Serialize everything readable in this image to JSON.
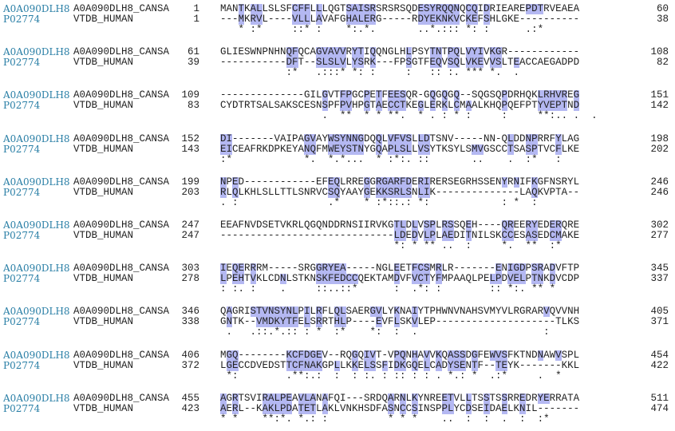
{
  "blocks": [
    {
      "rows": [
        {
          "id": "A0A090DLH8",
          "name": "A0A090DLH8_CANSA",
          "start": 1,
          "seq": "MANTKALLSLSFCFFLLLQGTSAISRSRSRSQDESYRQQNQCQIDRIEAREPDTRVEAEA",
          "end": 60
        },
        {
          "id": "P02774",
          "name": "VTDB_HUMAN",
          "start": 1,
          "seq": "---MKRVL----VLLLAVAFGHALERG-----RDYEKNKVCKEFSHLGKE----------",
          "end": 38
        }
      ],
      "consensus": "   * :*     ::* :    *:.*.       ..*.::: *: :      .:*"
    },
    {
      "rows": [
        {
          "id": "A0A090DLH8",
          "name": "A0A090DLH8_CANSA",
          "start": 61,
          "seq": "GLIESWNPNHNQFQCAGVAVVRYTIQQNGLHLPSYTNTPQLVYIVKGR------------",
          "end": 108
        },
        {
          "id": "P02774",
          "name": "VTDB_HUMAN",
          "start": 39,
          "seq": "-----------DFT--SLSLVLYSRK---FPSGTFEQVSQLVKEVVSLTEACCAEGADPD",
          "end": 82
        }
      ],
      "consensus": "           :*   .:::* *: :     :   :: :. *** *.  ."
    },
    {
      "rows": [
        {
          "id": "A0A090DLH8",
          "name": "A0A090DLH8_CANSA",
          "start": 109,
          "seq": "--------------GILGVTFPGCPETFEESQR-GQGQGQ--SQGSQPDRHQKLRHVREG",
          "end": 151
        },
        {
          "id": "P02774",
          "name": "VTDB_HUMAN",
          "start": 83,
          "seq": "CYDTRTSALSAKSCESNSPFPVHPGTAECCTKEGLERKLCMAALKHQPQEFPTYVEPTND",
          "end": 142
        }
      ],
      "consensus": "                 .  **  * * **.  * . : * :     :     **:.. .  ."
    },
    {
      "rows": [
        {
          "id": "A0A090DLH8",
          "name": "A0A090DLH8_CANSA",
          "start": 152,
          "seq": "DI-------VAIPAGVAYWSYNNGDQQLVFVSLLDTSNV-----NN-QLDDNPRRFYLAG",
          "end": 198
        },
        {
          "id": "P02774",
          "name": "VTDB_HUMAN",
          "start": 143,
          "seq": "EICEAFRKDPKEYANQFMWEYSTNYGQAPLSLLVSYTKSYLSMVGSCCTSASPTVCFLKE",
          "end": 202
        }
      ],
      "consensus": ":*            *.  *.*...  * :*:. ::       ..    .  :*   :"
    },
    {
      "rows": [
        {
          "id": "A0A090DLH8",
          "name": "A0A090DLH8_CANSA",
          "start": 199,
          "seq": "NPED------------EFEQLRREGGRGARFDERIRERSEGRHSSENYRNIFKGFNSRYL",
          "end": 246
        },
        {
          "id": "P02774",
          "name": "VTDB_HUMAN",
          "start": 203,
          "seq": "RLQLKHLSLLTTLSNRVCSQYAAYGEKKSRLSNLIK--------------LAQKVPTA--",
          "end": 246
        }
      ],
      "consensus": ". :               .*    * :*::.: *:            : *  :"
    },
    {
      "rows": [
        {
          "id": "A0A090DLH8",
          "name": "A0A090DLH8_CANSA",
          "start": 247,
          "seq": "EEAFNVDSETVKRLQGQNDDRNSIIRVKGTLDLVSPLRSSQEH----QREERYEDERQRE",
          "end": 302
        },
        {
          "id": "P02774",
          "name": "VTDB_HUMAN",
          "start": 247,
          "seq": "-----------------------------LDEDVLPLAEDITNILSKCCESASEDCMAKE",
          "end": 277
        }
      ],
      "consensus": "                             *: * ** ..  :     *.  **  :*"
    },
    {
      "rows": [
        {
          "id": "A0A090DLH8",
          "name": "A0A090DLH8_CANSA",
          "start": 303,
          "seq": "IEQERRRM-----SRGGRYEA-----NGLEETFCSMRLR-------ENIGDPSRADVFTP",
          "end": 345
        },
        {
          "id": "P02774",
          "name": "VTDB_HUMAN",
          "start": 278,
          "seq": "LPEHTVKLCDNLSTKNSKFEDCCQEKTAMDVFVCTYFMPAAQLPELPDVELPTNKDVCDP",
          "end": 337
        }
      ],
      "consensus": ": :. :    .     ::..::*      :  .*: :        :: *:. ** *"
    },
    {
      "rows": [
        {
          "id": "A0A090DLH8",
          "name": "A0A090DLH8_CANSA",
          "start": 346,
          "seq": "QAGRISTVNSYNLPILRFLQLSAERGVLYKNAIYTPHWNVNAHSVMYVLRGRARVQVVNH",
          "end": 405
        },
        {
          "id": "P02774",
          "name": "VTDB_HUMAN",
          "start": 338,
          "seq": "GNTK--VMDKYTFELSRRTHLP----EVFLSKVLEP--------------------TLKS",
          "end": 371
        }
      ],
      "consensus": " .   .::.*.:: : *  :*    *:  :  .                     :"
    },
    {
      "rows": [
        {
          "id": "A0A090DLH8",
          "name": "A0A090DLH8_CANSA",
          "start": 406,
          "seq": "MGQ--------KCFDGEV--RQGQIVT-VPQNHAVVKQASSDGFEWVSFKTNDNAWVSPL",
          "end": 454
        },
        {
          "id": "P02774",
          "name": "VTDB_HUMAN",
          "start": 372,
          "seq": "LGECCDVEDSTTCFNAKGPLLKKELSSFIDKGQELCADYSENTF--TEYK-------KKL",
          "end": 422
        }
      ],
      "consensus": " *:        .**:.:  :  : :. : :: : : . *.: *  .:*     .  *"
    },
    {
      "rows": [
        {
          "id": "A0A090DLH8",
          "name": "A0A090DLH8_CANSA",
          "start": 455,
          "seq": "AGRTSVIRALPEAVLANAFQI---SRDQARNLKYNREETVLLTSSTSSRREDRYERRATA",
          "end": 511
        },
        {
          "id": "P02774",
          "name": "VTDB_HUMAN",
          "start": 423,
          "seq": "AERL--KAKLPDATETLAKLVNKHSDFASNCCSINSPPLYCDSEIDAELKNIL-------",
          "end": 474
        }
      ],
      "consensus": "* *    **:*. *.: :          * * *    ..  :  :  .  :  :*"
    }
  ]
}
